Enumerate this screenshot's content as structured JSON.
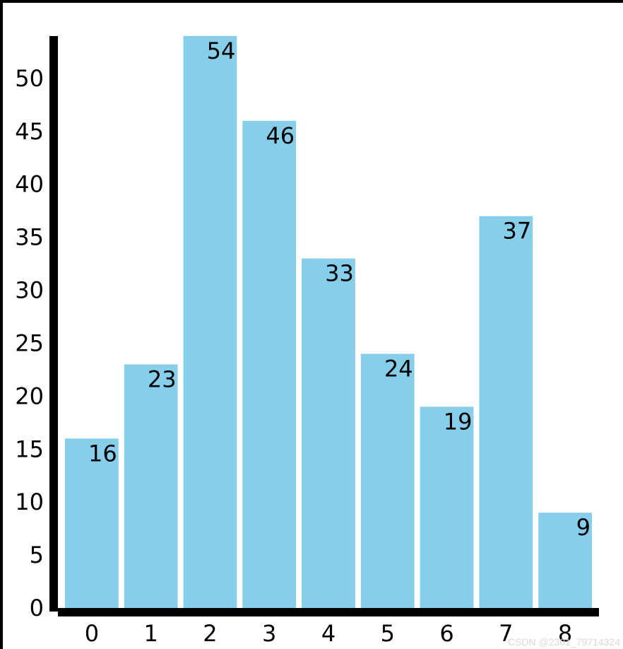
{
  "chart_data": {
    "type": "bar",
    "categories": [
      "0",
      "1",
      "2",
      "3",
      "4",
      "5",
      "6",
      "7",
      "8"
    ],
    "values": [
      16,
      23,
      54,
      46,
      33,
      24,
      19,
      37,
      9
    ],
    "title": "",
    "xlabel": "",
    "ylabel": "",
    "ylim": [
      0,
      54
    ],
    "yticks": [
      0,
      5,
      10,
      15,
      20,
      25,
      30,
      35,
      40,
      45,
      50
    ],
    "grid": false,
    "legend": "none",
    "bar_color": "#87ceeb",
    "axis_color": "#000000",
    "label_color": "#000000"
  },
  "watermark": "CSDN @2301_79714324"
}
